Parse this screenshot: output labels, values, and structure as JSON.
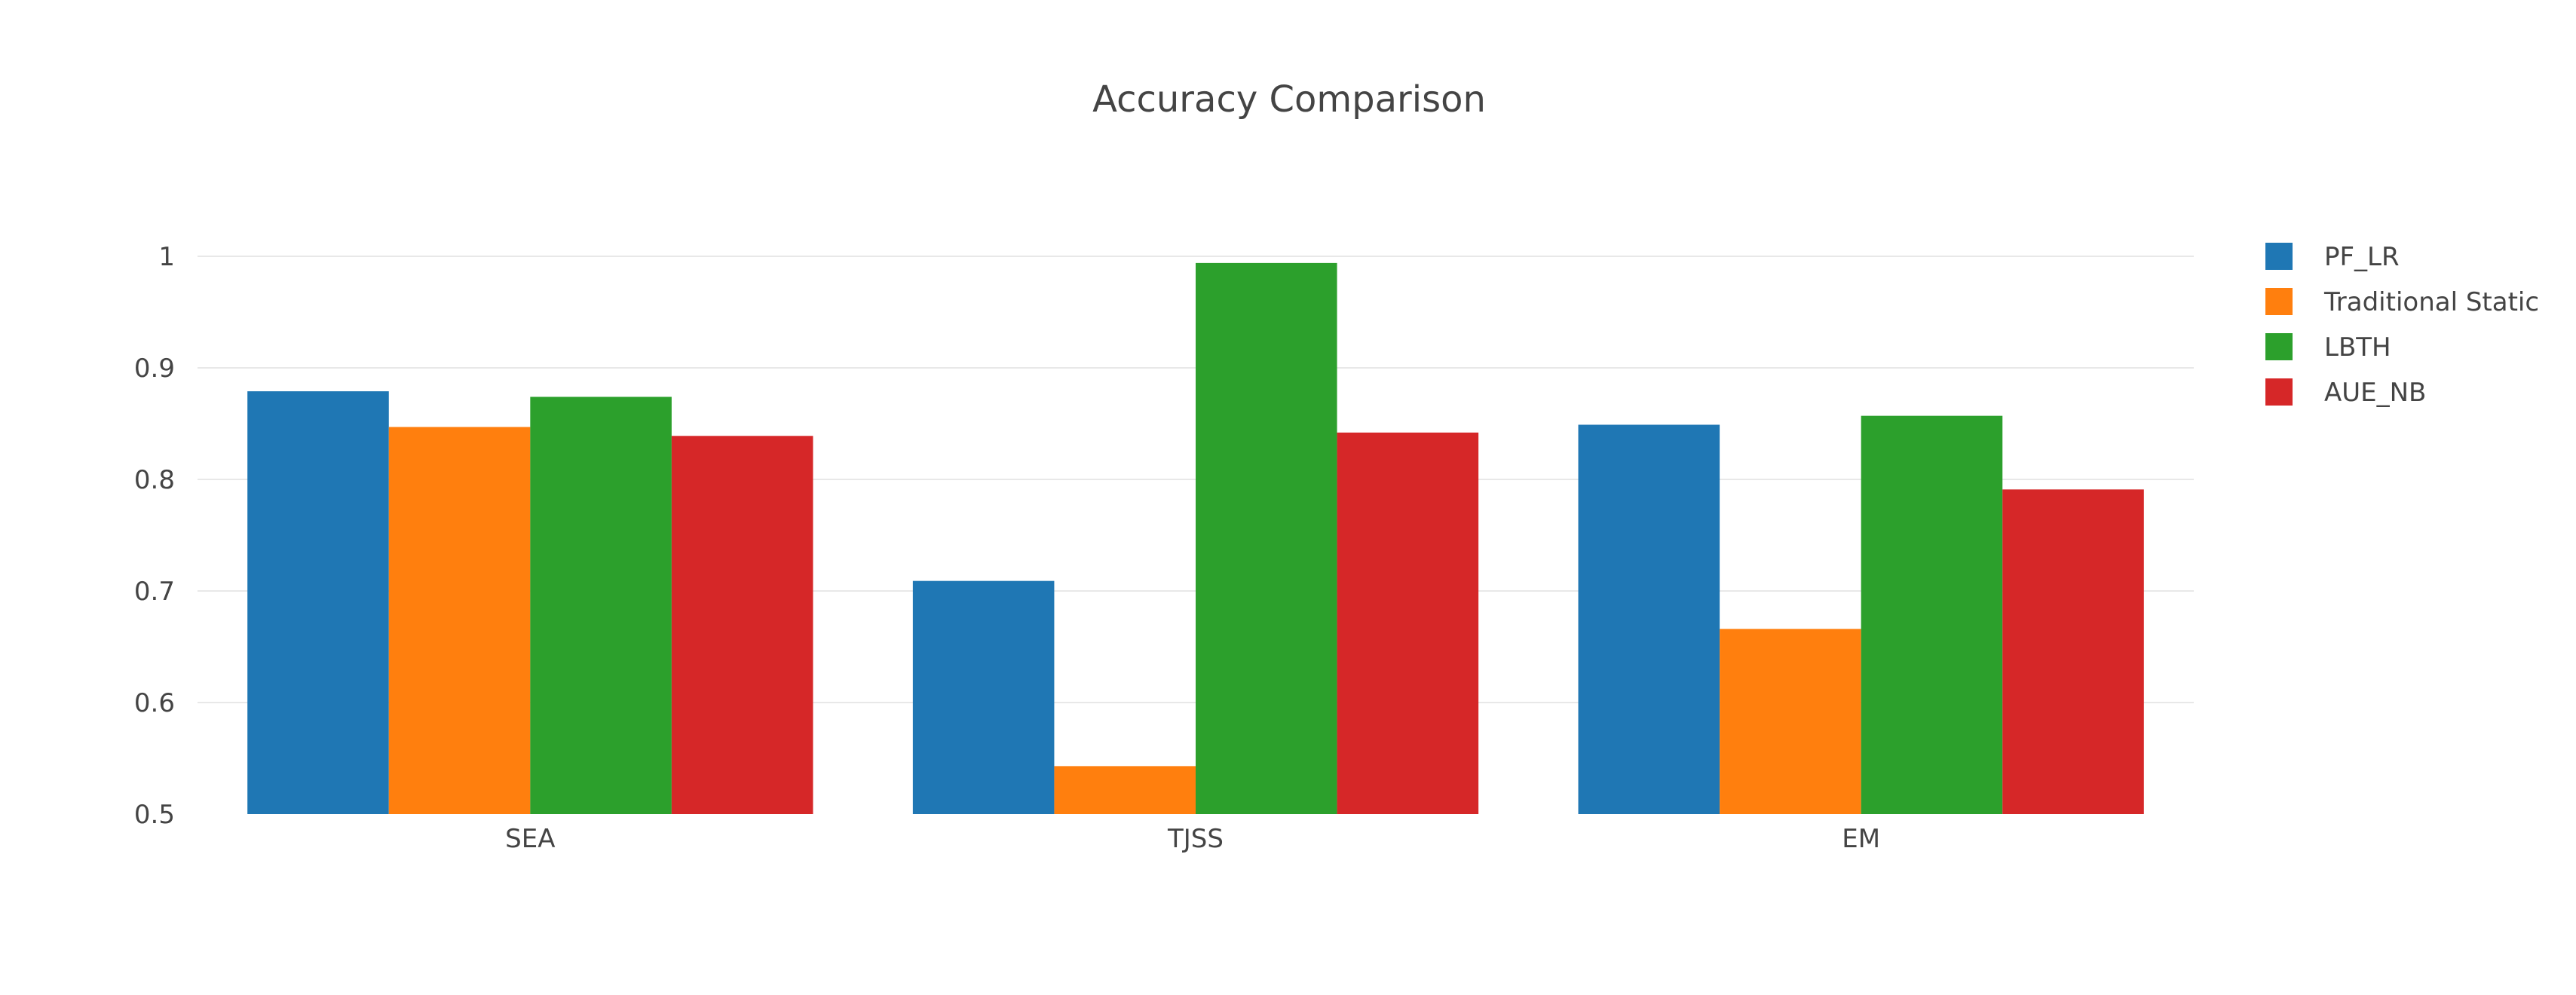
{
  "chart_data": {
    "type": "bar",
    "title": "Accuracy Comparison",
    "xlabel": "",
    "ylabel": "",
    "categories": [
      "SEA",
      "TJSS",
      "EM"
    ],
    "series": [
      {
        "name": "PF_LR",
        "color": "#1f77b4",
        "values": [
          0.879,
          0.709,
          0.849
        ]
      },
      {
        "name": "Traditional Static",
        "color": "#ff7f0e",
        "values": [
          0.847,
          0.543,
          0.666
        ]
      },
      {
        "name": "LBTH",
        "color": "#2ca02c",
        "values": [
          0.874,
          0.994,
          0.857
        ]
      },
      {
        "name": "AUE_NB",
        "color": "#d62728",
        "values": [
          0.839,
          0.842,
          0.791
        ]
      }
    ],
    "ylim": [
      0.5,
      1.0
    ],
    "yticks": [
      0.5,
      0.6,
      0.7,
      0.8,
      0.9,
      1
    ],
    "ytick_labels": [
      "0.5",
      "0.6",
      "0.7",
      "0.8",
      "0.9",
      "1"
    ],
    "grid": true,
    "legend_position": "top-right"
  }
}
